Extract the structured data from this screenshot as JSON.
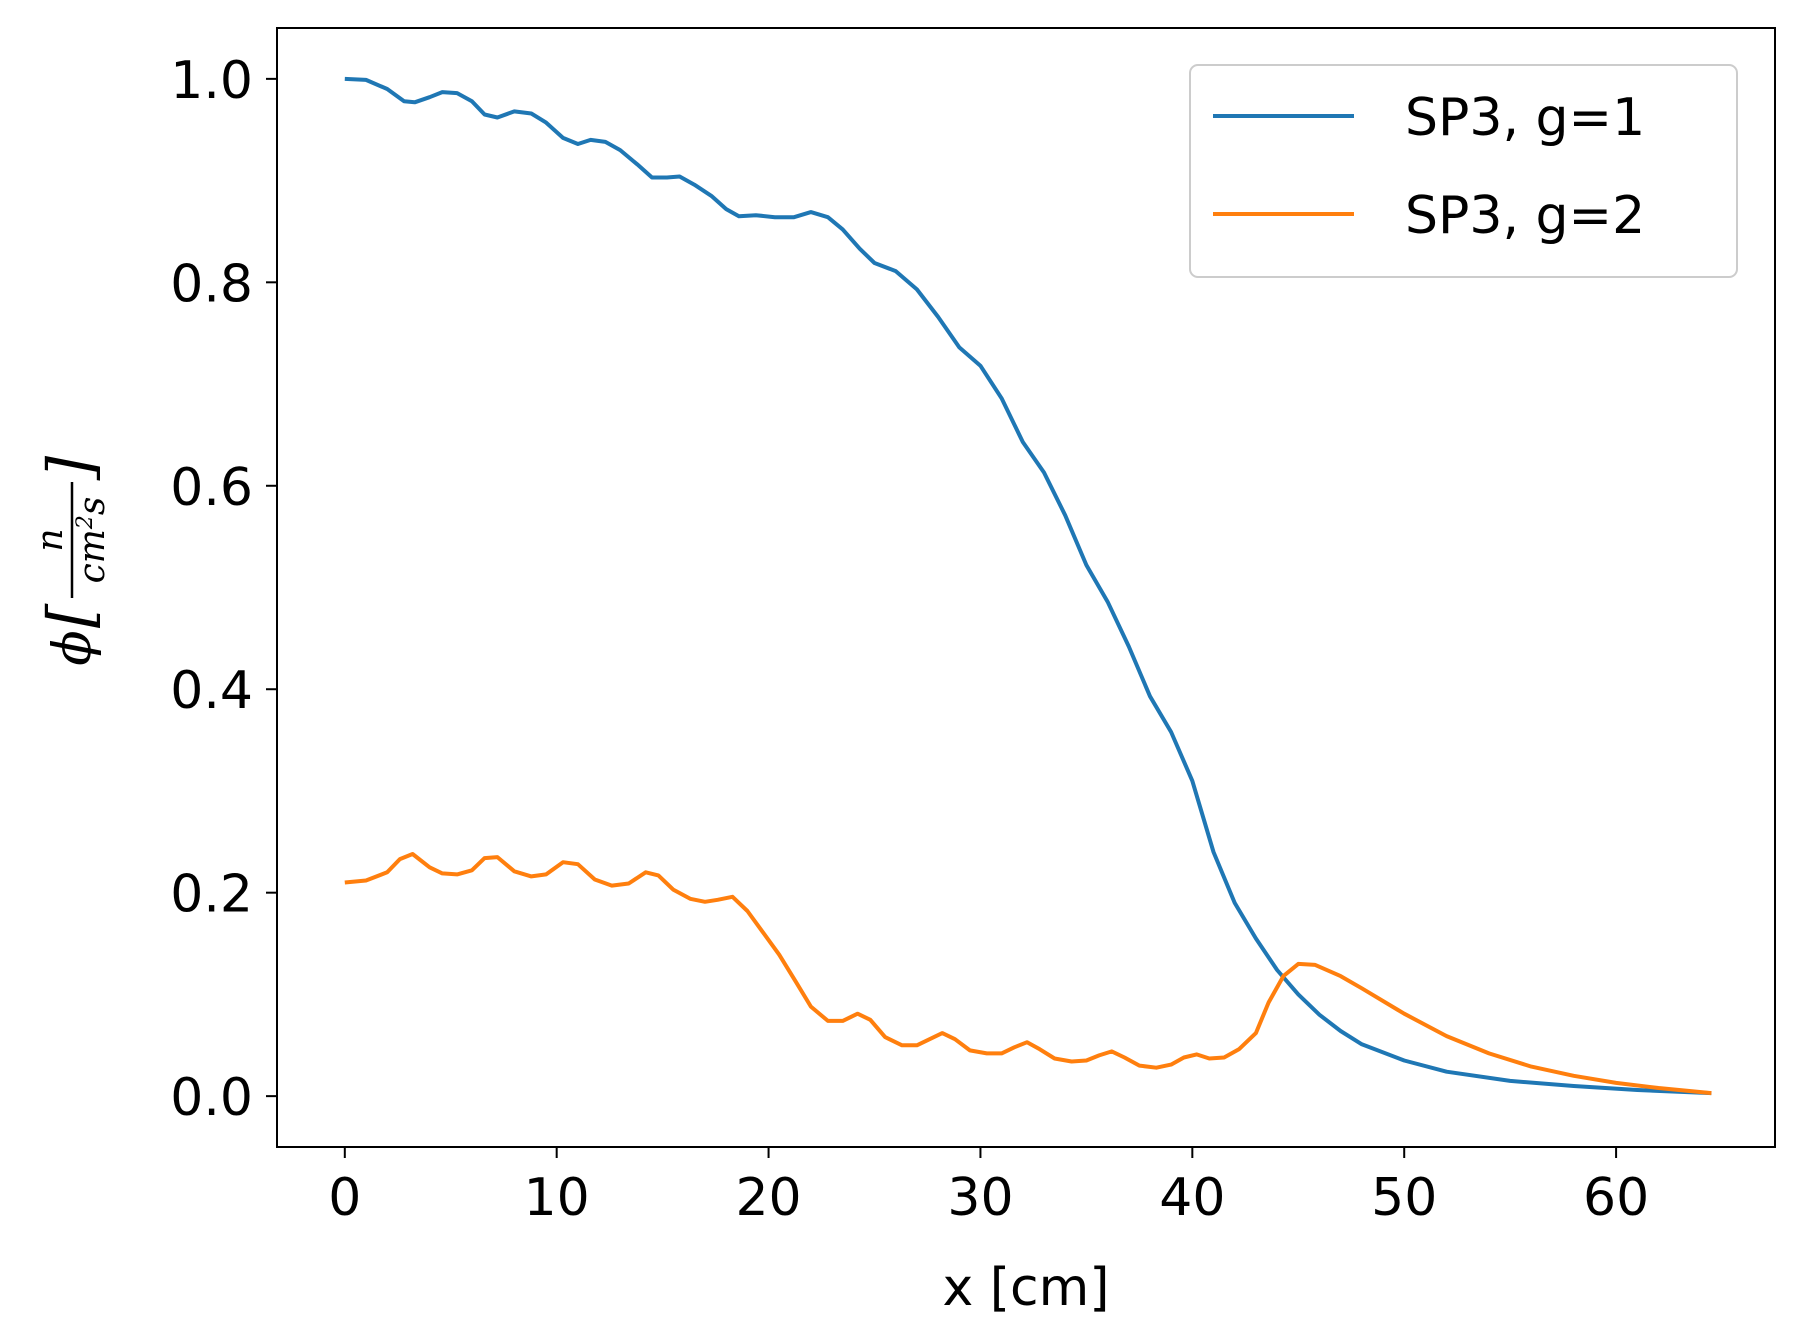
{
  "chart_data": {
    "type": "line",
    "title": "",
    "xlabel": "x [cm]",
    "ylabel": {
      "symbol": "ϕ",
      "numerator": "n",
      "denominator_base": "cm",
      "denominator_exp": "2",
      "denominator_tail": "s"
    },
    "xlim": [
      -3.2,
      67.5
    ],
    "ylim": [
      -0.05,
      1.05
    ],
    "xticks": [
      0,
      10,
      20,
      30,
      40,
      50,
      60
    ],
    "xtick_labels": [
      "0",
      "10",
      "20",
      "30",
      "40",
      "50",
      "60"
    ],
    "yticks": [
      0.0,
      0.2,
      0.4,
      0.6,
      0.8,
      1.0
    ],
    "ytick_labels": [
      "0.0",
      "0.2",
      "0.4",
      "0.6",
      "0.8",
      "1.0"
    ],
    "grid": false,
    "legend_position": "top-right",
    "series": [
      {
        "name": "SP3, g=1",
        "color": "#1f77b4",
        "points": [
          [
            0,
            1.0
          ],
          [
            1,
            0.999
          ],
          [
            2,
            0.99
          ],
          [
            2.8,
            0.978
          ],
          [
            3.3,
            0.977
          ],
          [
            4,
            0.982
          ],
          [
            4.6,
            0.987
          ],
          [
            5.3,
            0.986
          ],
          [
            6,
            0.978
          ],
          [
            6.6,
            0.965
          ],
          [
            7.2,
            0.962
          ],
          [
            8,
            0.968
          ],
          [
            8.8,
            0.966
          ],
          [
            9.5,
            0.957
          ],
          [
            10.3,
            0.942
          ],
          [
            11,
            0.936
          ],
          [
            11.6,
            0.94
          ],
          [
            12.3,
            0.938
          ],
          [
            13,
            0.93
          ],
          [
            13.8,
            0.916
          ],
          [
            14.5,
            0.903
          ],
          [
            15.2,
            0.903
          ],
          [
            15.8,
            0.904
          ],
          [
            16.5,
            0.896
          ],
          [
            17.3,
            0.885
          ],
          [
            18,
            0.872
          ],
          [
            18.6,
            0.865
          ],
          [
            19.4,
            0.866
          ],
          [
            20.3,
            0.864
          ],
          [
            21.2,
            0.864
          ],
          [
            22,
            0.869
          ],
          [
            22.8,
            0.864
          ],
          [
            23.5,
            0.852
          ],
          [
            24.3,
            0.833
          ],
          [
            25,
            0.819
          ],
          [
            26,
            0.811
          ],
          [
            27,
            0.793
          ],
          [
            28,
            0.766
          ],
          [
            29,
            0.736
          ],
          [
            30,
            0.718
          ],
          [
            31,
            0.686
          ],
          [
            32,
            0.643
          ],
          [
            33,
            0.613
          ],
          [
            34,
            0.571
          ],
          [
            35,
            0.522
          ],
          [
            36,
            0.486
          ],
          [
            37,
            0.442
          ],
          [
            38,
            0.393
          ],
          [
            39,
            0.358
          ],
          [
            40,
            0.31
          ],
          [
            41,
            0.24
          ],
          [
            42,
            0.19
          ],
          [
            43,
            0.155
          ],
          [
            44,
            0.124
          ],
          [
            45,
            0.1
          ],
          [
            46,
            0.08
          ],
          [
            47,
            0.064
          ],
          [
            48,
            0.051
          ],
          [
            50,
            0.035
          ],
          [
            52,
            0.024
          ],
          [
            55,
            0.015
          ],
          [
            58,
            0.01
          ],
          [
            61,
            0.006
          ],
          [
            64.5,
            0.003
          ]
        ]
      },
      {
        "name": "SP3, g=2",
        "color": "#ff7f0e",
        "points": [
          [
            0,
            0.21
          ],
          [
            1,
            0.212
          ],
          [
            2,
            0.22
          ],
          [
            2.6,
            0.233
          ],
          [
            3.2,
            0.238
          ],
          [
            4,
            0.225
          ],
          [
            4.6,
            0.219
          ],
          [
            5.3,
            0.218
          ],
          [
            6,
            0.222
          ],
          [
            6.6,
            0.234
          ],
          [
            7.2,
            0.235
          ],
          [
            8,
            0.221
          ],
          [
            8.8,
            0.216
          ],
          [
            9.5,
            0.218
          ],
          [
            10.3,
            0.23
          ],
          [
            11,
            0.228
          ],
          [
            11.8,
            0.213
          ],
          [
            12.6,
            0.207
          ],
          [
            13.4,
            0.209
          ],
          [
            14.2,
            0.22
          ],
          [
            14.8,
            0.217
          ],
          [
            15.5,
            0.203
          ],
          [
            16.3,
            0.194
          ],
          [
            17,
            0.191
          ],
          [
            17.6,
            0.193
          ],
          [
            18.3,
            0.196
          ],
          [
            19,
            0.182
          ],
          [
            19.7,
            0.162
          ],
          [
            20.5,
            0.139
          ],
          [
            21.3,
            0.112
          ],
          [
            22,
            0.088
          ],
          [
            22.8,
            0.074
          ],
          [
            23.5,
            0.074
          ],
          [
            24.2,
            0.081
          ],
          [
            24.8,
            0.075
          ],
          [
            25.5,
            0.058
          ],
          [
            26.3,
            0.05
          ],
          [
            27,
            0.05
          ],
          [
            27.6,
            0.056
          ],
          [
            28.2,
            0.062
          ],
          [
            28.8,
            0.056
          ],
          [
            29.5,
            0.045
          ],
          [
            30.3,
            0.042
          ],
          [
            31,
            0.042
          ],
          [
            31.6,
            0.048
          ],
          [
            32.2,
            0.053
          ],
          [
            32.8,
            0.046
          ],
          [
            33.5,
            0.037
          ],
          [
            34.3,
            0.034
          ],
          [
            35,
            0.035
          ],
          [
            35.6,
            0.04
          ],
          [
            36.2,
            0.044
          ],
          [
            36.8,
            0.038
          ],
          [
            37.5,
            0.03
          ],
          [
            38.3,
            0.028
          ],
          [
            39,
            0.031
          ],
          [
            39.6,
            0.038
          ],
          [
            40.2,
            0.041
          ],
          [
            40.8,
            0.037
          ],
          [
            41.5,
            0.038
          ],
          [
            42.2,
            0.046
          ],
          [
            43,
            0.062
          ],
          [
            43.6,
            0.092
          ],
          [
            44.3,
            0.118
          ],
          [
            45,
            0.13
          ],
          [
            45.8,
            0.129
          ],
          [
            47,
            0.118
          ],
          [
            48,
            0.106
          ],
          [
            50,
            0.081
          ],
          [
            52,
            0.059
          ],
          [
            54,
            0.042
          ],
          [
            56,
            0.029
          ],
          [
            58,
            0.02
          ],
          [
            60,
            0.013
          ],
          [
            62,
            0.008
          ],
          [
            64.5,
            0.003
          ]
        ]
      }
    ]
  }
}
